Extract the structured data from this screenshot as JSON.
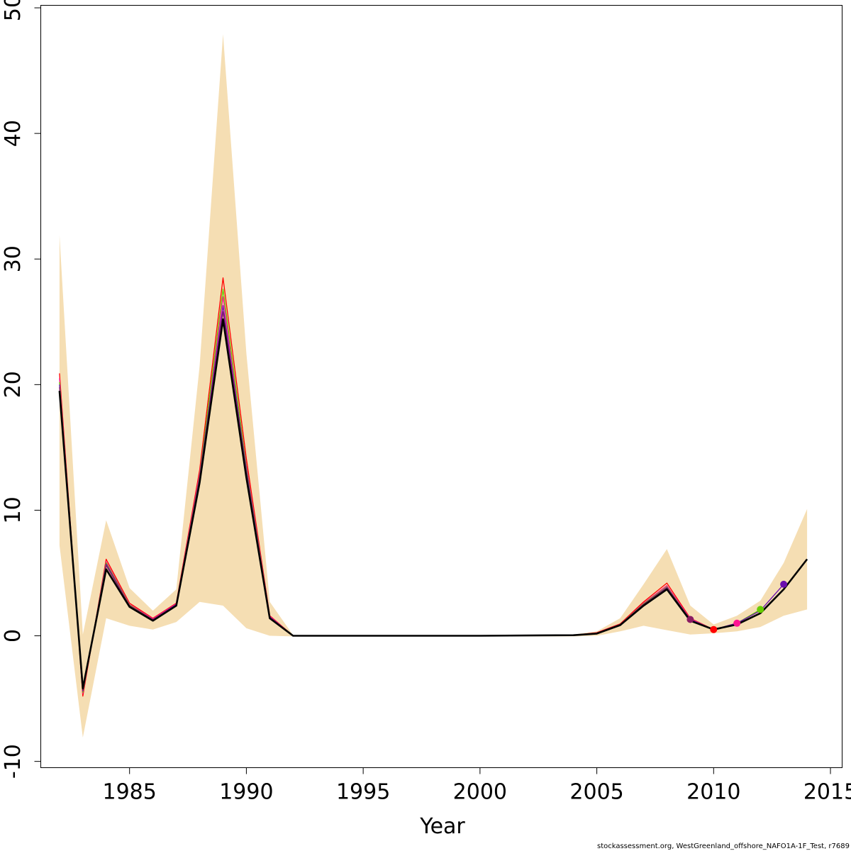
{
  "chart_data": {
    "type": "line",
    "xlabel": "Year",
    "ylabel": "",
    "xlim": [
      1981.2,
      2015.5
    ],
    "ylim": [
      -10.5,
      50.2
    ],
    "x_ticks": [
      1985,
      1990,
      1995,
      2000,
      2005,
      2010,
      2015
    ],
    "x_tick_labels": [
      "1985",
      "1990",
      "1995",
      "2000",
      "2005",
      "2010",
      "2015"
    ],
    "y_ticks": [
      -10,
      0,
      10,
      20,
      30,
      40,
      50
    ],
    "y_tick_labels": [
      "-10",
      "0",
      "10",
      "20",
      "30",
      "40",
      "50"
    ],
    "band_color": "#F5DEB3",
    "confidence_band": {
      "x": [
        1982,
        1983,
        1984,
        1985,
        1986,
        1987,
        1988,
        1989,
        1990,
        1991,
        1992,
        1993,
        1994,
        1995,
        1996,
        1997,
        1998,
        1999,
        2000,
        2001,
        2002,
        2003,
        2004,
        2005,
        2006,
        2007,
        2008,
        2009,
        2010,
        2011,
        2012,
        2013,
        2014
      ],
      "lower": [
        7.2,
        -8.1,
        1.4,
        0.8,
        0.5,
        1.1,
        2.7,
        2.4,
        0.6,
        0.0,
        -0.05,
        -0.05,
        -0.05,
        -0.05,
        -0.05,
        -0.05,
        -0.05,
        -0.05,
        -0.05,
        -0.05,
        -0.05,
        -0.05,
        -0.05,
        0.0,
        0.35,
        0.8,
        0.45,
        0.1,
        0.2,
        0.35,
        0.7,
        1.6,
        2.1
      ],
      "upper": [
        31.9,
        0.1,
        9.2,
        3.8,
        2.0,
        3.7,
        21.5,
        47.9,
        22.5,
        2.7,
        0.05,
        0.05,
        0.05,
        0.05,
        0.05,
        0.05,
        0.05,
        0.05,
        0.05,
        0.05,
        0.05,
        0.05,
        0.1,
        0.35,
        1.4,
        4.1,
        6.9,
        2.4,
        0.9,
        1.6,
        2.8,
        5.8,
        10.1
      ]
    },
    "series": [
      {
        "color": "#FF0000",
        "x": [
          1982,
          1983,
          1984,
          1985,
          1986,
          1987,
          1988,
          1989,
          1990,
          1991,
          1992,
          2000,
          2004,
          2005,
          2006,
          2007,
          2008,
          2009,
          2010
        ],
        "y": [
          20.9,
          -4.8,
          6.1,
          2.6,
          1.4,
          2.6,
          13.2,
          28.5,
          14.1,
          1.6,
          0.0,
          0.0,
          0.05,
          0.25,
          0.95,
          2.7,
          4.2,
          1.4,
          0.5
        ],
        "endpoint": [
          2010,
          0.5
        ]
      },
      {
        "color": "#FF1493",
        "x": [
          1982,
          1983,
          1984,
          1985,
          1986,
          1987,
          1988,
          1989,
          1990,
          1991,
          1992,
          2000,
          2004,
          2005,
          2006,
          2007,
          2008,
          2009,
          2010,
          2011
        ],
        "y": [
          20.5,
          -4.6,
          5.9,
          2.5,
          1.35,
          2.55,
          12.9,
          27.0,
          13.6,
          1.55,
          0.0,
          0.0,
          0.05,
          0.22,
          0.9,
          2.6,
          4.0,
          1.35,
          0.5,
          1.0
        ],
        "endpoint": [
          2011,
          1.0
        ]
      },
      {
        "color": "#66CC00",
        "x": [
          1982,
          1983,
          1984,
          1985,
          1986,
          1987,
          1988,
          1989,
          1990,
          1991,
          1992,
          2000,
          2004,
          2005,
          2006,
          2007,
          2008,
          2009,
          2010,
          2011,
          2012
        ],
        "y": [
          20.2,
          -4.5,
          5.8,
          2.45,
          1.3,
          2.5,
          12.7,
          27.6,
          13.4,
          1.5,
          0.0,
          0.0,
          0.05,
          0.2,
          0.9,
          2.55,
          3.9,
          1.3,
          0.5,
          1.0,
          2.1
        ],
        "endpoint": [
          2012,
          2.1
        ]
      },
      {
        "color": "#6A0DAD",
        "x": [
          1982,
          1983,
          1984,
          1985,
          1986,
          1987,
          1988,
          1989,
          1990,
          1991,
          1992,
          2000,
          2004,
          2005,
          2006,
          2007,
          2008,
          2009,
          2010,
          2011,
          2012,
          2013
        ],
        "y": [
          20.0,
          -4.4,
          5.7,
          2.4,
          1.3,
          2.5,
          12.6,
          26.3,
          13.2,
          1.5,
          0.0,
          0.0,
          0.05,
          0.2,
          0.9,
          2.5,
          3.85,
          1.3,
          0.5,
          1.0,
          2.0,
          4.1
        ],
        "endpoint": [
          2013,
          4.1
        ]
      },
      {
        "color": "#8B1C62",
        "x": [
          1982,
          1983,
          1984,
          1985,
          1986,
          1987,
          1988,
          1989,
          1990,
          1991,
          1992,
          2000,
          2004,
          2005,
          2006,
          2007,
          2008,
          2009
        ],
        "y": [
          19.8,
          -4.3,
          5.6,
          2.4,
          1.3,
          2.45,
          12.5,
          25.8,
          13.0,
          1.45,
          0.0,
          0.0,
          0.05,
          0.2,
          0.9,
          2.5,
          3.8,
          1.3
        ],
        "endpoint": [
          2009,
          1.3
        ]
      },
      {
        "color": "#000000",
        "x": [
          1982,
          1983,
          1984,
          1985,
          1986,
          1987,
          1988,
          1989,
          1990,
          1991,
          1992,
          2000,
          2004,
          2005,
          2006,
          2007,
          2008,
          2009,
          2010,
          2011,
          2012,
          2013,
          2014
        ],
        "y": [
          19.5,
          -4.2,
          5.3,
          2.3,
          1.2,
          2.4,
          12.2,
          25.2,
          12.6,
          1.4,
          0.0,
          0.0,
          0.05,
          0.18,
          0.85,
          2.4,
          3.7,
          1.2,
          0.5,
          0.9,
          1.8,
          3.7,
          6.1
        ],
        "endpoint": null
      }
    ]
  },
  "footer": {
    "text": "stockassessment.org, WestGreenland_offshore_NAFO1A-1F_Test, r7689"
  }
}
